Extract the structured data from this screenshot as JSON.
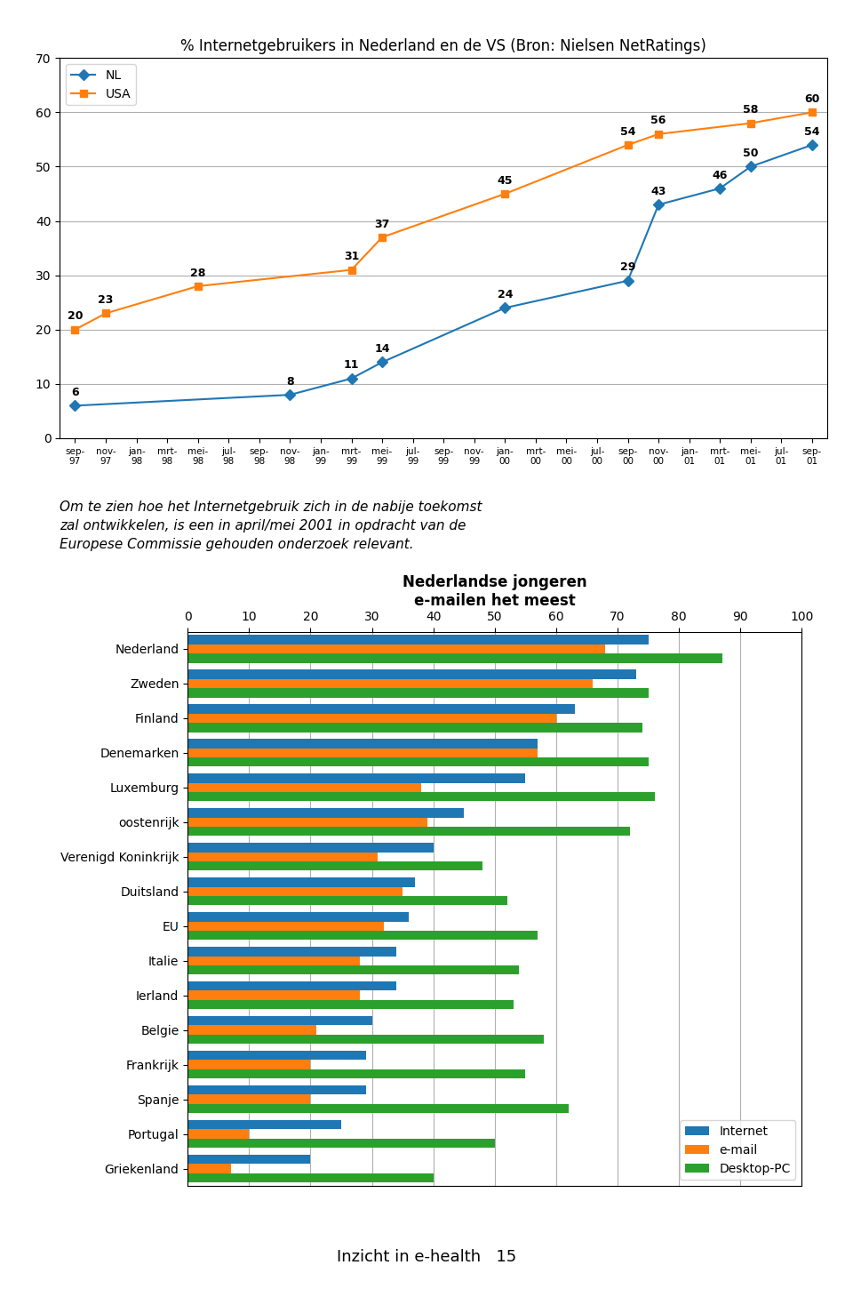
{
  "chart_data": [
    {
      "type": "line",
      "title": "% Internetgebruikers in Nederland en de VS (Bron: Nielsen NetRatings)",
      "categories": [
        "sep-\n97",
        "nov-\n97",
        "jan-\n98",
        "mrt-\n98",
        "mei-\n98",
        "jul-\n98",
        "sep-\n98",
        "nov-\n98",
        "jan-\n99",
        "mrt-\n99",
        "mei-\n99",
        "jul-\n99",
        "sep-\n99",
        "nov-\n99",
        "jan-\n00",
        "mrt-\n00",
        "mei-\n00",
        "jul-\n00",
        "sep-\n00",
        "nov-\n00",
        "jan-\n01",
        "mrt-\n01",
        "mei-\n01",
        "jul-\n01",
        "sep-\n01"
      ],
      "series": [
        {
          "name": "NL",
          "marker": "diamond",
          "values": [
            6,
            null,
            null,
            null,
            null,
            null,
            null,
            8,
            null,
            11,
            14,
            null,
            null,
            null,
            24,
            null,
            null,
            null,
            29,
            43,
            null,
            46,
            50,
            null,
            54
          ]
        },
        {
          "name": "USA",
          "marker": "square",
          "values": [
            20,
            23,
            null,
            null,
            28,
            null,
            null,
            null,
            null,
            31,
            37,
            null,
            null,
            null,
            45,
            null,
            null,
            null,
            54,
            56,
            null,
            null,
            58,
            null,
            60
          ]
        }
      ],
      "ylim": [
        0,
        70
      ],
      "yticks": [
        0,
        10,
        20,
        30,
        40,
        50,
        60,
        70
      ],
      "grid": true,
      "legend": "upper left",
      "data_labels": true
    },
    {
      "type": "bar",
      "orientation": "horizontal",
      "title": "Nederlandse jongeren\ne-mailen het meest",
      "categories": [
        "Nederland",
        "Zweden",
        "Finland",
        "Denemarken",
        "Luxemburg",
        "oostenrijk",
        "Verenigd Koninkrijk",
        "Duitsland",
        "EU",
        "Italie",
        "Ierland",
        "Belgie",
        "Frankrijk",
        "Spanje",
        "Portugal",
        "Griekenland"
      ],
      "series": [
        {
          "name": "Internet",
          "values": [
            75,
            73,
            63,
            57,
            55,
            45,
            40,
            37,
            36,
            34,
            34,
            30,
            29,
            29,
            25,
            20
          ]
        },
        {
          "name": "e-mail",
          "values": [
            68,
            66,
            60,
            57,
            38,
            39,
            31,
            35,
            32,
            28,
            28,
            21,
            20,
            20,
            10,
            7
          ]
        },
        {
          "name": "Desktop-PC",
          "values": [
            87,
            75,
            74,
            75,
            76,
            72,
            48,
            52,
            57,
            54,
            53,
            58,
            55,
            62,
            50,
            40
          ]
        }
      ],
      "xlim": [
        0,
        100
      ],
      "xticks": [
        0,
        10,
        20,
        30,
        40,
        50,
        60,
        70,
        80,
        90,
        100
      ],
      "grid": true,
      "legend": "lower right"
    }
  ],
  "annotations": [
    "Om te zien hoe het Internetgebruik zich in de nabije toekomst\nzal ontwikkelen, is een in april/mei 2001 in opdracht van de\nEuropese Commissie gehouden onderzoek relevant.",
    "Inzicht in e-health   15"
  ]
}
